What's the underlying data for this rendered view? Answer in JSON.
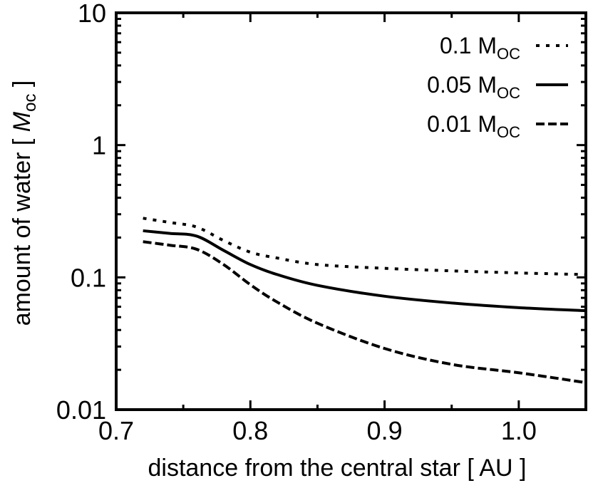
{
  "chart_data": {
    "type": "line",
    "xlabel": "distance from the central star [ AU ]",
    "ylabel_prefix": "amount of water [ ",
    "ylabel_var": "M",
    "ylabel_sub": "oc",
    "ylabel_suffix": " ]",
    "xlim": [
      0.7,
      1.05
    ],
    "ylim": [
      0.01,
      10
    ],
    "yscale": "log",
    "grid": false,
    "legend_placement": "top-right",
    "x_ticks": [
      {
        "value": 0.7,
        "label": "0.7"
      },
      {
        "value": 0.8,
        "label": "0.8"
      },
      {
        "value": 0.9,
        "label": "0.9"
      },
      {
        "value": 1.0,
        "label": "1.0"
      }
    ],
    "x_minor_ticks": [
      0.75,
      0.85,
      0.95
    ],
    "y_ticks": [
      {
        "value": 0.01,
        "label": "0.01"
      },
      {
        "value": 0.1,
        "label": "0.1"
      },
      {
        "value": 1,
        "label": "1"
      },
      {
        "value": 10,
        "label": "10"
      }
    ],
    "x": [
      0.72,
      0.74,
      0.76,
      0.78,
      0.8,
      0.82,
      0.85,
      0.9,
      0.95,
      1.0,
      1.05
    ],
    "series": [
      {
        "name_main": "0.1 M",
        "name_sub": "OC",
        "style": "dotted",
        "values": [
          0.28,
          0.26,
          0.24,
          0.19,
          0.155,
          0.14,
          0.125,
          0.117,
          0.112,
          0.108,
          0.105
        ]
      },
      {
        "name_main": "0.05 M",
        "name_sub": "OC",
        "style": "solid",
        "values": [
          0.225,
          0.215,
          0.205,
          0.16,
          0.125,
          0.105,
          0.087,
          0.072,
          0.064,
          0.059,
          0.056
        ]
      },
      {
        "name_main": "0.01 M",
        "name_sub": "OC",
        "style": "dashed",
        "values": [
          0.186,
          0.175,
          0.163,
          0.125,
          0.088,
          0.065,
          0.045,
          0.029,
          0.022,
          0.019,
          0.016
        ]
      }
    ]
  }
}
